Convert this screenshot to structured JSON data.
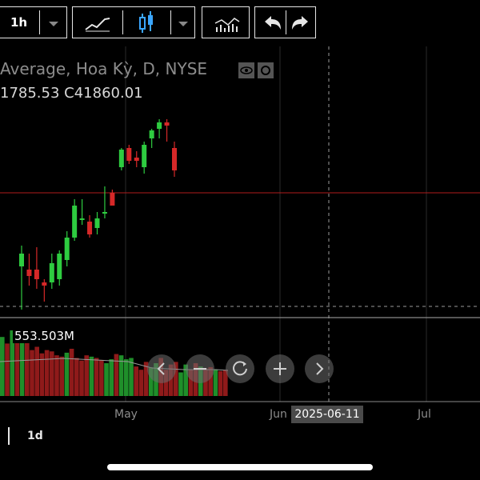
{
  "toolbar": {
    "interval_label": "1h",
    "icons": [
      "chevron-down-icon",
      "line-chart-icon",
      "candlestick-icon",
      "chevron-down-icon",
      "indicators-icon",
      "undo-icon",
      "redo-icon"
    ]
  },
  "chart": {
    "title": "Average, Hoa Kỳ, D, NYSE",
    "ohlc_text": "1785.53  C41860.01",
    "volume_label": "553.503M",
    "crosshair_date": "2025-06-11",
    "months": [
      "May",
      "Jun",
      "Jul"
    ],
    "period_label": "1d",
    "colors": {
      "up": "#2ecc40",
      "down": "#d62828",
      "price_line": "#b11d1d",
      "grid": "#2a2a2a"
    }
  },
  "chart_data": {
    "type": "candlestick",
    "candles": [
      {
        "o": 0.32,
        "h": 0.45,
        "l": 0.05,
        "c": 0.4,
        "up": true
      },
      {
        "o": 0.3,
        "h": 0.4,
        "l": 0.2,
        "c": 0.26,
        "up": false
      },
      {
        "o": 0.3,
        "h": 0.44,
        "l": 0.18,
        "c": 0.24,
        "up": false
      },
      {
        "o": 0.2,
        "h": 0.24,
        "l": 0.1,
        "c": 0.22,
        "up": false
      },
      {
        "o": 0.22,
        "h": 0.4,
        "l": 0.18,
        "c": 0.34,
        "up": true
      },
      {
        "o": 0.24,
        "h": 0.42,
        "l": 0.2,
        "c": 0.4,
        "up": true
      },
      {
        "o": 0.36,
        "h": 0.54,
        "l": 0.32,
        "c": 0.5,
        "up": true
      },
      {
        "o": 0.5,
        "h": 0.74,
        "l": 0.48,
        "c": 0.7,
        "up": true
      },
      {
        "o": 0.62,
        "h": 0.74,
        "l": 0.58,
        "c": 0.62,
        "up": true
      },
      {
        "o": 0.6,
        "h": 0.64,
        "l": 0.5,
        "c": 0.52,
        "up": false
      },
      {
        "o": 0.56,
        "h": 0.66,
        "l": 0.52,
        "c": 0.62,
        "up": true
      },
      {
        "o": 0.66,
        "h": 0.82,
        "l": 0.62,
        "c": 0.66,
        "up": true
      },
      {
        "o": 0.78,
        "h": 0.8,
        "l": 0.7,
        "c": 0.7,
        "up": false
      },
      {
        "o": 0.94,
        "h": 1.06,
        "l": 0.92,
        "c": 1.05,
        "up": true
      },
      {
        "o": 1.06,
        "h": 1.08,
        "l": 0.96,
        "c": 0.98,
        "up": false
      },
      {
        "o": 0.98,
        "h": 1.04,
        "l": 0.94,
        "c": 1.0,
        "up": false
      },
      {
        "o": 0.94,
        "h": 1.1,
        "l": 0.9,
        "c": 1.08,
        "up": true
      },
      {
        "o": 1.12,
        "h": 1.18,
        "l": 1.06,
        "c": 1.17,
        "up": true
      },
      {
        "o": 1.18,
        "h": 1.24,
        "l": 1.12,
        "c": 1.22,
        "up": true
      },
      {
        "o": 1.22,
        "h": 1.24,
        "l": 1.1,
        "c": 1.2,
        "up": false
      },
      {
        "o": 1.06,
        "h": 1.1,
        "l": 0.88,
        "c": 0.92,
        "up": false
      }
    ],
    "volume": [
      0.9,
      0.8,
      1.0,
      1.0,
      0.95,
      0.85,
      0.7,
      0.75,
      0.65,
      0.7,
      0.68,
      0.62,
      0.6,
      0.66,
      0.72,
      0.58,
      0.54,
      0.62,
      0.6,
      0.58,
      0.55,
      0.5,
      0.56,
      0.64,
      0.62,
      0.56,
      0.58,
      0.45,
      0.4,
      0.52,
      0.44,
      0.5,
      0.58,
      0.4,
      0.48,
      0.52,
      0.36,
      0.48,
      0.4,
      0.5,
      0.45,
      0.42,
      0.44,
      0.4,
      0.38,
      0.4
    ],
    "volume_up": [
      true,
      false,
      true,
      false,
      true,
      false,
      false,
      false,
      false,
      false,
      false,
      false,
      false,
      true,
      false,
      false,
      false,
      false,
      true,
      false,
      false,
      true,
      true,
      false,
      true,
      true,
      true,
      false,
      false,
      false,
      true,
      true,
      false,
      false,
      false,
      false,
      true,
      true,
      false,
      false,
      true,
      false,
      false,
      true,
      false,
      false
    ]
  }
}
